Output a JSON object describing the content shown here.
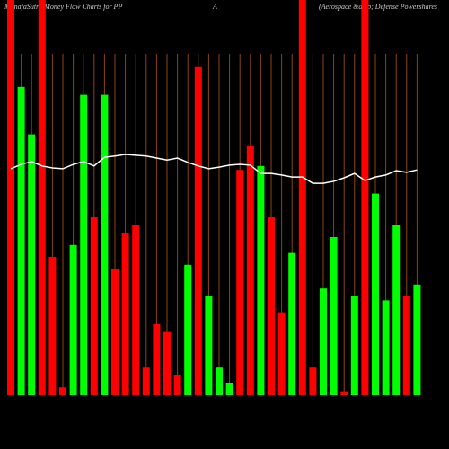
{
  "chart_data": {
    "type": "bar",
    "title": [
      "MunafaSutra  Money Flow  Charts for PP",
      "A",
      "(Aerospace &amp; Defense  Powershares"
    ],
    "ylim": [
      0,
      100
    ],
    "values": [
      100,
      78,
      66,
      100,
      35,
      2,
      38,
      76,
      45,
      76,
      32,
      41,
      43,
      7,
      18,
      16,
      5,
      33,
      83,
      25,
      7,
      3,
      57,
      63,
      58,
      45,
      21,
      36,
      100,
      7,
      27,
      40,
      1,
      25,
      100,
      51,
      24,
      43,
      25,
      28
    ],
    "colors": [
      "#ff0000",
      "#00ff00",
      "#00ff00",
      "#ff0000",
      "#ff0000",
      "#ff0000",
      "#00ff00",
      "#00ff00",
      "#ff0000",
      "#00ff00",
      "#ff0000",
      "#ff0000",
      "#ff0000",
      "#ff0000",
      "#ff0000",
      "#ff0000",
      "#ff0000",
      "#00ff00",
      "#ff0000",
      "#00ff00",
      "#00ff00",
      "#00ff00",
      "#ff0000",
      "#ff0000",
      "#00ff00",
      "#ff0000",
      "#ff0000",
      "#00ff00",
      "#ff0000",
      "#ff0000",
      "#00ff00",
      "#00ff00",
      "#ff0000",
      "#00ff00",
      "#ff0000",
      "#00ff00",
      "#00ff00",
      "#00ff00",
      "#ff0000",
      "#00ff00"
    ],
    "line": {
      "color": "#ffffff",
      "values": [
        57.3,
        58.4,
        59.1,
        58.0,
        57.5,
        57.3,
        58.4,
        59.1,
        58.0,
        60.2,
        60.5,
        60.9,
        60.7,
        60.5,
        60.0,
        59.5,
        60.0,
        58.9,
        58.0,
        57.3,
        57.7,
        58.2,
        58.4,
        58.2,
        56.1,
        56.1,
        55.7,
        55.2,
        55.2,
        53.6,
        53.6,
        54.1,
        55.0,
        56.1,
        54.3,
        55.2,
        55.7,
        56.8,
        56.4,
        57.0
      ]
    }
  }
}
